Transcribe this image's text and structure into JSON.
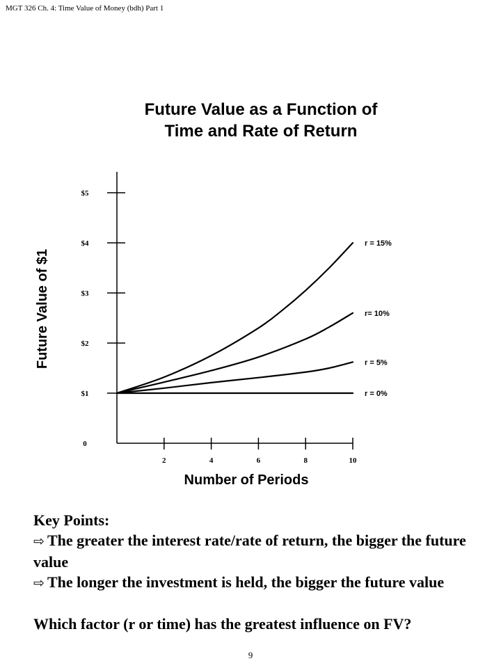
{
  "header": "MGT 326  Ch. 4: Time Value of Money (bdh) Part 1",
  "title_line1": "Future Value as a Function of",
  "title_line2": "Time and Rate of Return",
  "chart_data": {
    "type": "line",
    "xlabel": "Number of Periods",
    "ylabel": "Future Value of $1",
    "x_ticks": [
      2,
      4,
      6,
      8,
      10
    ],
    "y_ticks": [
      "0",
      "$1",
      "$2",
      "$3",
      "$4",
      "$5"
    ],
    "xlim": [
      0,
      10
    ],
    "ylim": [
      0,
      5
    ],
    "grid": false,
    "legend": "labels at right end of each line",
    "series": [
      {
        "name": "r = 15%",
        "x": [
          0,
          2,
          4,
          6,
          7,
          8,
          9,
          10
        ],
        "y": [
          1,
          1.32,
          1.75,
          2.3,
          2.65,
          3.05,
          3.5,
          4.0
        ]
      },
      {
        "name": "r= 10%",
        "x": [
          0,
          2,
          4,
          6,
          8,
          9,
          10
        ],
        "y": [
          1,
          1.22,
          1.45,
          1.72,
          2.08,
          2.32,
          2.6
        ]
      },
      {
        "name": "r = 5%",
        "x": [
          0,
          2,
          4,
          6,
          8,
          9,
          10
        ],
        "y": [
          1,
          1.1,
          1.21,
          1.31,
          1.42,
          1.5,
          1.62
        ]
      },
      {
        "name": "r = 0%",
        "x": [
          0,
          10
        ],
        "y": [
          1,
          1
        ]
      }
    ]
  },
  "key_points": {
    "heading": "Key Points:",
    "items": [
      "The greater the interest rate/rate of return, the bigger the future value",
      "The longer the investment is held, the bigger the future value"
    ],
    "question": "Which factor (r or time) has the greatest influence on FV?"
  },
  "page_number": "9"
}
